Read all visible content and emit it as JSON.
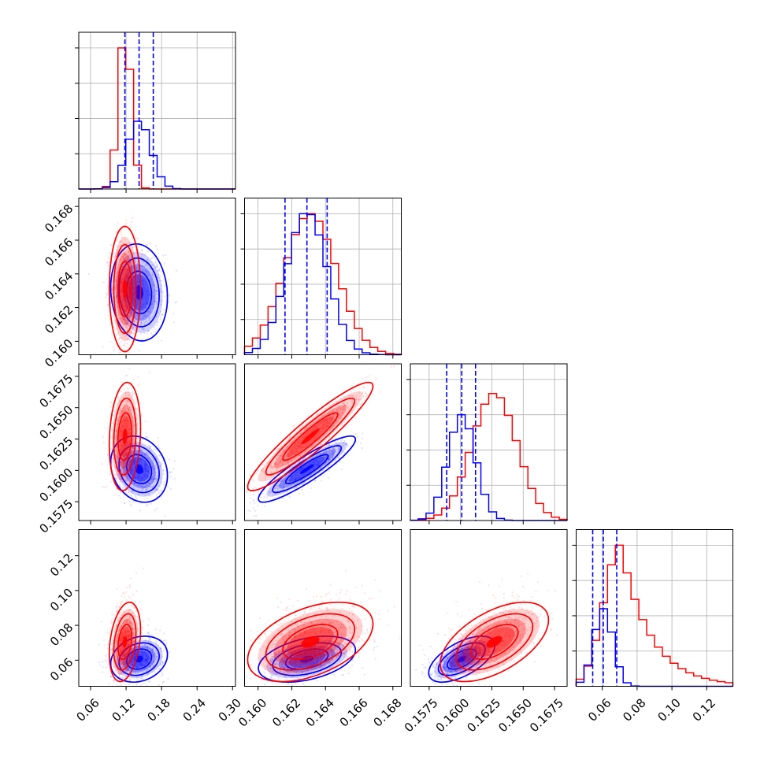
{
  "colors": {
    "series_a": "#ff0000",
    "series_b": "#0000ff",
    "grid": "#b0b0b0",
    "frame": "#000000"
  },
  "chart_data": {
    "type": "corner",
    "grid": true,
    "parameters": [
      {
        "ticks": [
          "0.06",
          "0.12",
          "0.18",
          "0.24",
          "0.30"
        ],
        "tick_values": [
          0.06,
          0.12,
          0.18,
          0.24,
          0.3
        ],
        "range": [
          0.04,
          0.305
        ]
      },
      {
        "ticks": [
          "0.160",
          "0.162",
          "0.164",
          "0.166",
          "0.168"
        ],
        "tick_values": [
          0.16,
          0.162,
          0.164,
          0.166,
          0.168
        ],
        "range": [
          0.1592,
          0.1685
        ]
      },
      {
        "ticks": [
          "0.1575",
          "0.1600",
          "0.1625",
          "0.1650",
          "0.1675"
        ],
        "tick_values": [
          0.1575,
          0.16,
          0.1625,
          0.165,
          0.1675
        ],
        "range": [
          0.156,
          0.1685
        ]
      },
      {
        "ticks": [
          "0.06",
          "0.08",
          "0.10",
          "0.12"
        ],
        "tick_values": [
          0.06,
          0.08,
          0.1,
          0.12
        ],
        "range": [
          0.045,
          0.135
        ]
      }
    ],
    "series": [
      {
        "key": "red",
        "color": "#ff0000",
        "mean": [
          0.118,
          0.1631,
          0.1627,
          0.0705
        ],
        "std": [
          0.011,
          0.00155,
          0.0018,
          0.0095
        ],
        "hist_peak": [
          1.0,
          1.0,
          0.9,
          1.0
        ],
        "hist_skew": [
          0.0,
          0.0,
          0.0,
          1.2
        ],
        "corr": [
          [
            1,
            0.0,
            0.15,
            0.3
          ],
          [
            0.0,
            1,
            0.93,
            0.45
          ],
          [
            0.15,
            0.93,
            1,
            0.55
          ],
          [
            0.3,
            0.45,
            0.55,
            1
          ]
        ]
      },
      {
        "key": "blue",
        "color": "#0000ff",
        "mean": [
          0.142,
          0.1629,
          0.1601,
          0.0606
        ],
        "std": [
          0.02,
          0.0012,
          0.0011,
          0.0055
        ],
        "hist_peak": [
          0.48,
          1.0,
          0.75,
          0.55
        ],
        "hist_skew": [
          0.0,
          0.0,
          0.0,
          0.0
        ],
        "quantiles": [
          [
            0.118,
            0.142,
            0.166
          ],
          [
            0.1616,
            0.1629,
            0.1641
          ],
          [
            0.1589,
            0.1601,
            0.1612
          ],
          [
            0.0545,
            0.0606,
            0.0683
          ]
        ],
        "corr": [
          [
            1,
            -0.1,
            -0.2,
            0.2
          ],
          [
            -0.1,
            1,
            0.9,
            0.4
          ],
          [
            -0.2,
            0.9,
            1,
            0.6
          ],
          [
            0.2,
            0.4,
            0.6,
            1
          ]
        ]
      }
    ]
  }
}
